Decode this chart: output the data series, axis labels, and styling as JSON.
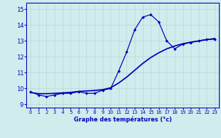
{
  "title": "Graphe des températures (°c)",
  "xlim": [
    -0.5,
    23.5
  ],
  "ylim": [
    8.8,
    15.4
  ],
  "yticks": [
    9,
    10,
    11,
    12,
    13,
    14,
    15
  ],
  "xticks": [
    0,
    1,
    2,
    3,
    4,
    5,
    6,
    7,
    8,
    9,
    10,
    11,
    12,
    13,
    14,
    15,
    16,
    17,
    18,
    19,
    20,
    21,
    22,
    23
  ],
  "bg_color": "#d0ecec",
  "line_color": "#0000bb",
  "temp_line": [
    9.8,
    9.6,
    9.5,
    9.6,
    9.7,
    9.7,
    9.8,
    9.7,
    9.7,
    9.9,
    10.0,
    11.1,
    12.3,
    13.7,
    14.5,
    14.65,
    14.2,
    13.0,
    12.5,
    12.8,
    12.9,
    13.0,
    13.1,
    13.1
  ],
  "trend_line": [
    9.75,
    9.68,
    9.68,
    9.7,
    9.73,
    9.76,
    9.82,
    9.85,
    9.88,
    9.93,
    10.05,
    10.35,
    10.72,
    11.15,
    11.58,
    11.95,
    12.25,
    12.5,
    12.68,
    12.82,
    12.92,
    13.0,
    13.08,
    13.15
  ]
}
